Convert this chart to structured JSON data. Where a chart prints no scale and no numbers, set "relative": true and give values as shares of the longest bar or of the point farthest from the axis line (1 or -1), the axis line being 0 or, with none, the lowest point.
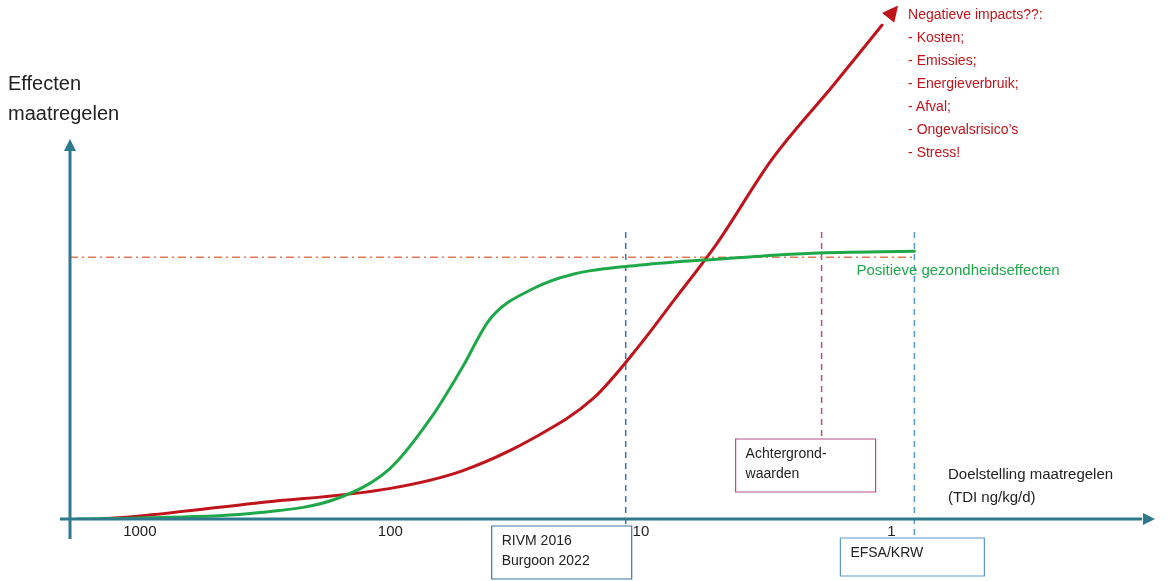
{
  "chart_data": {
    "type": "line",
    "relative": true,
    "xlabel": "Doelstelling maatregelen\n(TDI ng/kg/d)",
    "ylabel": "Effecten\nmaatregelen",
    "xlim": [
      1900,
      0.1
    ],
    "log": "x",
    "xticks": [
      1000,
      100,
      10,
      1
    ],
    "grid": false,
    "legend": false,
    "marker": "none",
    "line_style": "solid",
    "series": [
      {
        "name": "Positieve gezondheidseffecten",
        "color": "#1fa84a",
        "x": [
          1780,
          1000,
          347,
          162,
          100,
          69,
          52,
          40,
          27,
          18.5,
          10,
          5,
          2.06,
          0.81
        ],
        "values": [
          0,
          0.002,
          0.012,
          0.042,
          0.103,
          0.204,
          0.304,
          0.405,
          0.466,
          0.496,
          0.514,
          0.526,
          0.538,
          0.542
        ]
      },
      {
        "color": "#c0141c",
        "x": [
          1413,
          1000,
          347,
          100,
          52,
          27,
          15.5,
          10,
          7.3,
          5,
          3,
          1.7,
          1.09
        ],
        "values": [
          0,
          0.006,
          0.032,
          0.062,
          0.097,
          0.163,
          0.244,
          0.355,
          0.446,
          0.556,
          0.728,
          0.879,
          1
        ]
      }
    ],
    "ref_lines": [
      {
        "axis": "x",
        "value": 11.5,
        "label": "RIVM 2016\nBurgoon 2022",
        "color": "#3a78a8",
        "line_style": "dashed"
      },
      {
        "axis": "x",
        "value": 1.9,
        "label": "Achtergrond-\nwaarden",
        "color": "#b0508a",
        "line_style": "dashed"
      },
      {
        "axis": "x",
        "value": 0.81,
        "label": "EFSA/KRW",
        "color": "#5a9ad0",
        "line_style": "dashed"
      },
      {
        "axis": "y",
        "value": 0.53,
        "label": null,
        "color": "#e07a50",
        "line_style": "dashdot"
      }
    ],
    "annotations": [
      "Negatieve impacts??:\n- Kosten;\n- Emissies;\n- Energieverbruik;\n- Afval;\n- Ongevalsrisico’s\n- Stress!"
    ]
  }
}
